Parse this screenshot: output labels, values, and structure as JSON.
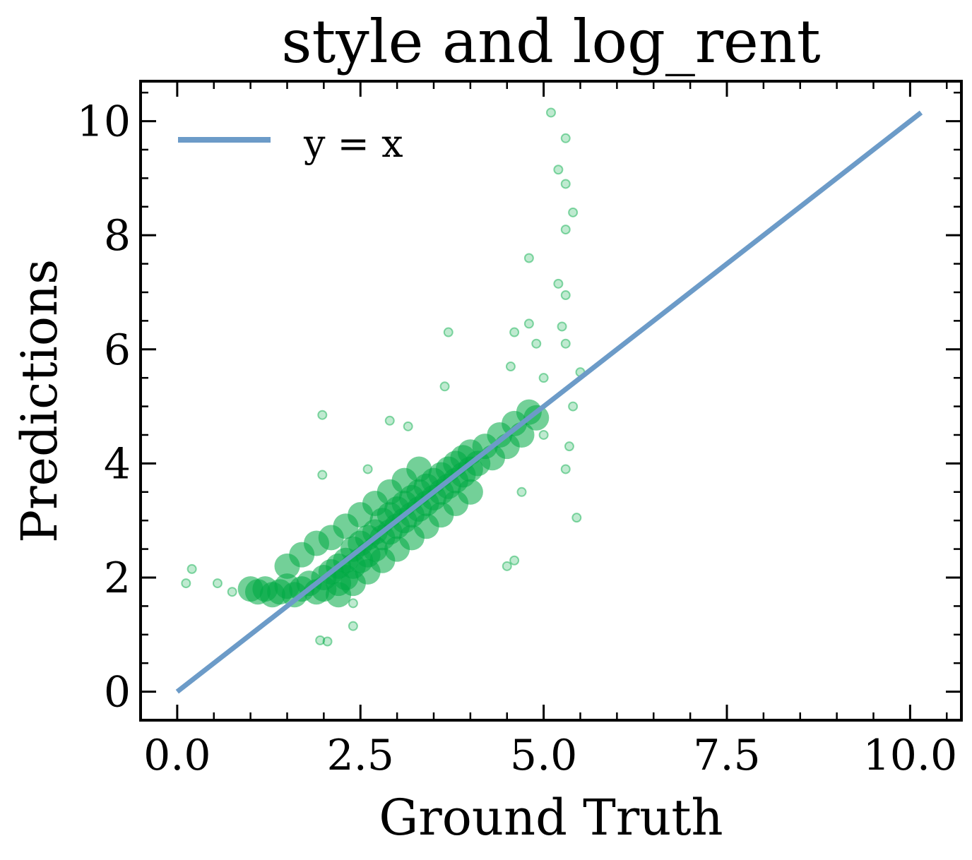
{
  "chart_data": {
    "type": "scatter",
    "title": "style and log_rent",
    "xlabel": "Ground Truth",
    "ylabel": "Predictions",
    "xlim": [
      -0.5,
      10.7
    ],
    "ylim": [
      -0.5,
      10.7
    ],
    "x_ticks": [
      {
        "value": 0.0,
        "label": "0.0"
      },
      {
        "value": 2.5,
        "label": "2.5"
      },
      {
        "value": 5.0,
        "label": "5.0"
      },
      {
        "value": 7.5,
        "label": "7.5"
      },
      {
        "value": 10.0,
        "label": "10.0"
      }
    ],
    "y_ticks": [
      {
        "value": 0,
        "label": "0"
      },
      {
        "value": 2,
        "label": "2"
      },
      {
        "value": 4,
        "label": "4"
      },
      {
        "value": 6,
        "label": "6"
      },
      {
        "value": 8,
        "label": "8"
      },
      {
        "value": 10,
        "label": "10"
      }
    ],
    "grid": false,
    "legend": {
      "position": "top-left",
      "entries": [
        {
          "label": "y = x",
          "color": "#6c9bc8"
        }
      ]
    },
    "colors": {
      "scatter": "#00aa44",
      "reference_line": "#6c9bc8"
    },
    "series": [
      {
        "name": "y = x",
        "kind": "line",
        "points": [
          [
            0.0,
            0.0
          ],
          [
            10.15,
            10.15
          ]
        ]
      },
      {
        "kind": "scatter",
        "main_cloud": [
          [
            1.0,
            1.8
          ],
          [
            1.1,
            1.75
          ],
          [
            1.2,
            1.8
          ],
          [
            1.3,
            1.7
          ],
          [
            1.4,
            1.75
          ],
          [
            1.5,
            1.85
          ],
          [
            1.6,
            1.7
          ],
          [
            1.7,
            1.8
          ],
          [
            1.8,
            1.9
          ],
          [
            1.9,
            1.75
          ],
          [
            2.0,
            2.0
          ],
          [
            2.0,
            1.8
          ],
          [
            2.1,
            2.1
          ],
          [
            2.2,
            1.9
          ],
          [
            2.2,
            2.2
          ],
          [
            2.3,
            2.0
          ],
          [
            2.3,
            2.3
          ],
          [
            2.4,
            2.2
          ],
          [
            2.4,
            2.5
          ],
          [
            2.5,
            2.3
          ],
          [
            2.5,
            2.6
          ],
          [
            2.6,
            2.4
          ],
          [
            2.6,
            2.7
          ],
          [
            2.7,
            2.5
          ],
          [
            2.7,
            2.8
          ],
          [
            2.8,
            2.7
          ],
          [
            2.8,
            3.0
          ],
          [
            2.9,
            2.8
          ],
          [
            2.9,
            3.1
          ],
          [
            3.0,
            2.9
          ],
          [
            3.0,
            3.2
          ],
          [
            3.1,
            3.0
          ],
          [
            3.1,
            3.3
          ],
          [
            3.2,
            3.1
          ],
          [
            3.2,
            3.4
          ],
          [
            3.3,
            3.2
          ],
          [
            3.3,
            3.5
          ],
          [
            3.4,
            3.3
          ],
          [
            3.4,
            3.6
          ],
          [
            3.5,
            3.4
          ],
          [
            3.5,
            3.7
          ],
          [
            3.6,
            3.5
          ],
          [
            3.6,
            3.8
          ],
          [
            3.7,
            3.6
          ],
          [
            3.7,
            3.9
          ],
          [
            3.8,
            3.7
          ],
          [
            3.8,
            4.0
          ],
          [
            3.9,
            3.8
          ],
          [
            3.9,
            4.1
          ],
          [
            4.0,
            3.9
          ],
          [
            4.0,
            4.2
          ],
          [
            4.1,
            4.0
          ],
          [
            4.2,
            4.3
          ],
          [
            4.3,
            4.1
          ],
          [
            4.4,
            4.5
          ],
          [
            4.5,
            4.3
          ],
          [
            4.6,
            4.7
          ],
          [
            4.7,
            4.5
          ],
          [
            4.8,
            4.9
          ],
          [
            4.9,
            4.8
          ],
          [
            1.5,
            2.2
          ],
          [
            1.7,
            2.4
          ],
          [
            1.9,
            2.6
          ],
          [
            2.1,
            2.7
          ],
          [
            2.3,
            2.9
          ],
          [
            2.5,
            3.1
          ],
          [
            2.7,
            3.3
          ],
          [
            2.9,
            3.5
          ],
          [
            3.1,
            3.7
          ],
          [
            3.3,
            3.9
          ],
          [
            2.2,
            1.7
          ],
          [
            2.4,
            1.9
          ],
          [
            2.6,
            2.1
          ],
          [
            2.8,
            2.3
          ],
          [
            3.0,
            2.5
          ],
          [
            3.2,
            2.7
          ],
          [
            3.4,
            2.9
          ],
          [
            3.6,
            3.1
          ],
          [
            3.8,
            3.3
          ],
          [
            4.0,
            3.5
          ]
        ],
        "outliers": [
          [
            0.12,
            1.9
          ],
          [
            0.2,
            2.15
          ],
          [
            0.55,
            1.9
          ],
          [
            0.75,
            1.75
          ],
          [
            1.95,
            0.9
          ],
          [
            2.05,
            0.88
          ],
          [
            2.4,
            1.15
          ],
          [
            2.4,
            1.55
          ],
          [
            1.98,
            4.85
          ],
          [
            1.98,
            3.8
          ],
          [
            2.6,
            3.9
          ],
          [
            2.9,
            4.75
          ],
          [
            3.15,
            4.65
          ],
          [
            3.7,
            6.3
          ],
          [
            3.65,
            5.35
          ],
          [
            4.6,
            2.3
          ],
          [
            4.5,
            2.2
          ],
          [
            4.7,
            3.5
          ],
          [
            4.6,
            6.3
          ],
          [
            4.55,
            5.7
          ],
          [
            4.8,
            6.45
          ],
          [
            4.9,
            6.1
          ],
          [
            5.0,
            5.5
          ],
          [
            5.1,
            10.15
          ],
          [
            5.3,
            9.7
          ],
          [
            5.2,
            9.15
          ],
          [
            5.3,
            8.9
          ],
          [
            5.4,
            8.4
          ],
          [
            5.3,
            8.1
          ],
          [
            4.8,
            7.6
          ],
          [
            5.2,
            7.15
          ],
          [
            5.3,
            6.95
          ],
          [
            5.25,
            6.4
          ],
          [
            5.3,
            6.1
          ],
          [
            5.5,
            5.6
          ],
          [
            5.4,
            5.0
          ],
          [
            5.35,
            4.3
          ],
          [
            5.3,
            3.9
          ],
          [
            5.45,
            3.05
          ],
          [
            5.0,
            4.5
          ]
        ]
      }
    ]
  }
}
